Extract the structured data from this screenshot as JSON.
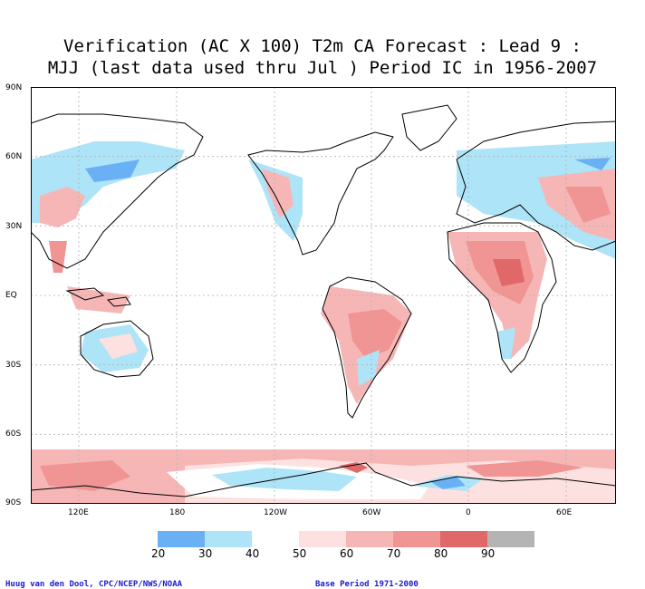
{
  "title_line1": "Verification (AC X 100) T2m CA Forecast : Lead 9 :",
  "title_line2": "MJJ (last data used thru Jul ) Period IC in 1956-2007",
  "lat_labels": [
    "90N",
    "60N",
    "30N",
    "EQ",
    "30S",
    "60S",
    "90S"
  ],
  "lon_labels": [
    "120E",
    "180",
    "120W",
    "60W",
    "0",
    "60E"
  ],
  "colorbar": {
    "ticks": [
      "20",
      "30",
      "40",
      "50",
      "60",
      "70",
      "80",
      "90"
    ],
    "colors": [
      "#6ab0f5",
      "#aee4f7",
      "#ffffff",
      "#fde0e0",
      "#f6b6b6",
      "#f09494",
      "#e06868",
      "#b4b4b4"
    ]
  },
  "credit_left": "Huug van den Dool, CPC/NCEP/NWS/NOAA",
  "credit_right": "Base Period 1971-2000"
}
